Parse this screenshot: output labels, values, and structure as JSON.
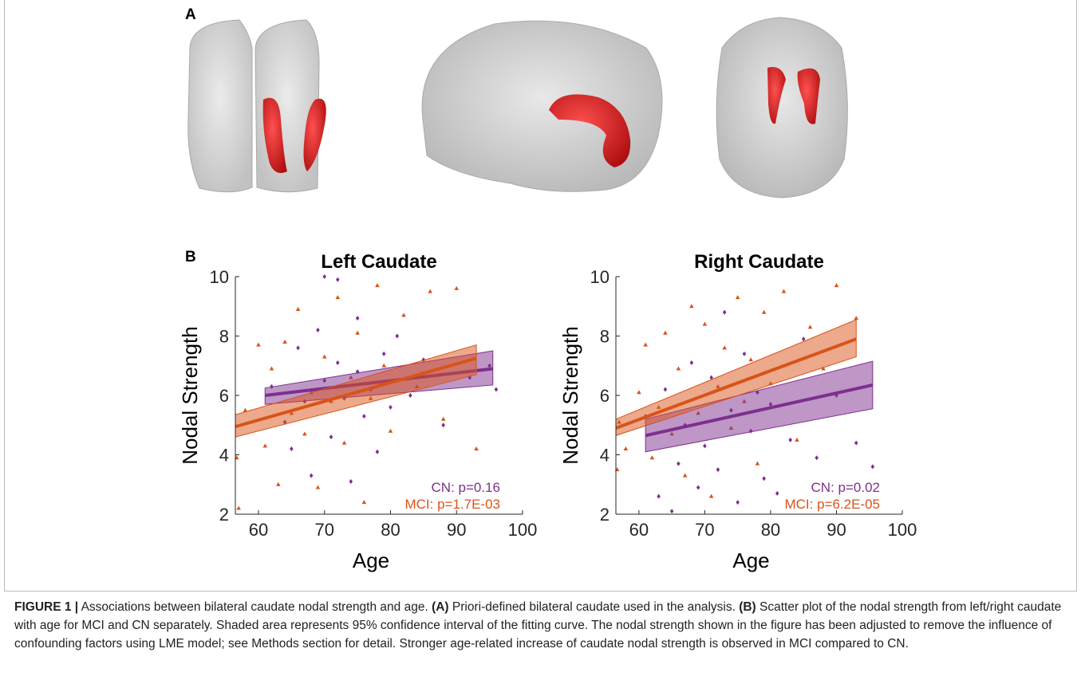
{
  "panels": {
    "a": "A",
    "b": "B"
  },
  "chart_data": [
    {
      "type": "scatter",
      "title": "Left Caudate",
      "xlabel": "Age",
      "ylabel": "Nodal Strength",
      "xlim": [
        56.5,
        100
      ],
      "ylim": [
        2,
        10
      ],
      "xticks": [
        60,
        70,
        80,
        90,
        100
      ],
      "yticks": [
        2,
        4,
        6,
        8,
        10
      ],
      "series": [
        {
          "color": "#7e2f8e",
          "marker": "diamond",
          "x": [
            62,
            64,
            65,
            66,
            67,
            68,
            69,
            70,
            70,
            71,
            72,
            72,
            73,
            74,
            75,
            75,
            76,
            77,
            78,
            79,
            80,
            81,
            83,
            85,
            88,
            92,
            95,
            96
          ],
          "values": [
            6.3,
            5.1,
            4.2,
            7.6,
            5.8,
            3.3,
            8.2,
            10.0,
            6.5,
            4.6,
            9.9,
            7.1,
            5.9,
            3.1,
            6.8,
            8.6,
            5.3,
            6.2,
            4.1,
            7.4,
            5.6,
            8.0,
            6.0,
            7.2,
            5.0,
            6.6,
            7.0,
            6.2
          ]
        },
        {
          "color": "#d95319",
          "marker": "triangle",
          "x": [
            56.7,
            57,
            58,
            60,
            61,
            62,
            63,
            64,
            65,
            66,
            67,
            68,
            69,
            70,
            71,
            72,
            73,
            74,
            75,
            76,
            77,
            78,
            79,
            80,
            82,
            84,
            86,
            88,
            90,
            93
          ],
          "values": [
            3.9,
            2.2,
            5.5,
            7.7,
            4.3,
            6.9,
            3.0,
            7.8,
            5.4,
            8.9,
            4.7,
            6.1,
            2.9,
            7.3,
            5.8,
            9.3,
            4.4,
            6.6,
            8.1,
            2.4,
            5.9,
            9.7,
            7.0,
            4.8,
            8.7,
            6.3,
            9.5,
            5.2,
            9.6,
            4.2
          ]
        }
      ],
      "fits": [
        {
          "color": "#7e2f8e",
          "x": [
            61,
            95.5
          ],
          "values": [
            6.0,
            6.9
          ],
          "lower": [
            5.7,
            6.35
          ],
          "upper": [
            6.25,
            7.5
          ]
        },
        {
          "color": "#d95319",
          "x": [
            56.5,
            93
          ],
          "values": [
            4.95,
            7.25
          ],
          "lower": [
            4.6,
            6.7
          ],
          "upper": [
            5.35,
            7.7
          ]
        }
      ],
      "annotations": [
        {
          "text": "CN: p=0.16",
          "color": "#7e2f8e"
        },
        {
          "text": "MCI: p=1.7E-03",
          "color": "#d95319"
        }
      ]
    },
    {
      "type": "scatter",
      "title": "Right Caudate",
      "xlabel": "Age",
      "ylabel": "Nodal Strength",
      "xlim": [
        56.5,
        100
      ],
      "ylim": [
        2,
        10
      ],
      "xticks": [
        60,
        70,
        80,
        90,
        100
      ],
      "yticks": [
        2,
        4,
        6,
        8,
        10
      ],
      "series": [
        {
          "color": "#7e2f8e",
          "marker": "diamond",
          "x": [
            61,
            63,
            64,
            65,
            66,
            67,
            68,
            69,
            70,
            71,
            72,
            73,
            74,
            75,
            76,
            77,
            78,
            79,
            80,
            81,
            83,
            85,
            87,
            90,
            93,
            95.5
          ],
          "values": [
            5.3,
            2.6,
            6.2,
            2.1,
            3.7,
            5.0,
            7.1,
            2.9,
            4.3,
            6.6,
            3.5,
            8.8,
            5.5,
            2.4,
            7.4,
            4.8,
            6.1,
            3.2,
            5.7,
            2.7,
            4.5,
            7.9,
            3.9,
            6.0,
            4.4,
            3.6
          ]
        },
        {
          "color": "#d95319",
          "marker": "triangle",
          "x": [
            56.7,
            57,
            58,
            60,
            61,
            62,
            63,
            64,
            65,
            66,
            67,
            68,
            69,
            70,
            71,
            72,
            73,
            74,
            75,
            76,
            77,
            78,
            79,
            80,
            82,
            84,
            86,
            88,
            90,
            93
          ],
          "values": [
            3.5,
            5.1,
            4.2,
            6.1,
            7.7,
            3.9,
            5.6,
            8.1,
            4.7,
            6.9,
            3.3,
            9.0,
            5.4,
            8.4,
            2.6,
            6.3,
            7.6,
            4.9,
            9.3,
            5.8,
            7.2,
            3.7,
            8.8,
            6.4,
            9.5,
            4.5,
            8.3,
            6.9,
            9.7,
            8.6
          ]
        }
      ],
      "fits": [
        {
          "color": "#7e2f8e",
          "x": [
            61,
            95.5
          ],
          "values": [
            4.65,
            6.35
          ],
          "lower": [
            4.1,
            5.55
          ],
          "upper": [
            5.2,
            7.15
          ]
        },
        {
          "color": "#d95319",
          "x": [
            56.5,
            93
          ],
          "values": [
            4.9,
            7.9
          ],
          "lower": [
            4.65,
            7.3
          ],
          "upper": [
            5.2,
            8.55
          ]
        }
      ],
      "annotations": [
        {
          "text": "CN: p=0.02",
          "color": "#7e2f8e"
        },
        {
          "text": "MCI: p=6.2E-05",
          "color": "#d95319"
        }
      ]
    }
  ],
  "caption": {
    "label": "FIGURE 1 |",
    "text_1": " Associations between bilateral caudate nodal strength and age. ",
    "part_a": "(A)",
    "text_2": " Priori-defined bilateral caudate used in the analysis. ",
    "part_b": "(B)",
    "text_3": " Scatter plot of the nodal strength from left/right caudate with age for MCI and CN separately. Shaded area represents 95% confidence interval of the fitting curve. The nodal strength shown in the figure has been adjusted to remove the influence of confounding factors using LME model; see Methods section for detail. Stronger age-related increase of caudate nodal strength is observed in MCI compared to CN."
  }
}
